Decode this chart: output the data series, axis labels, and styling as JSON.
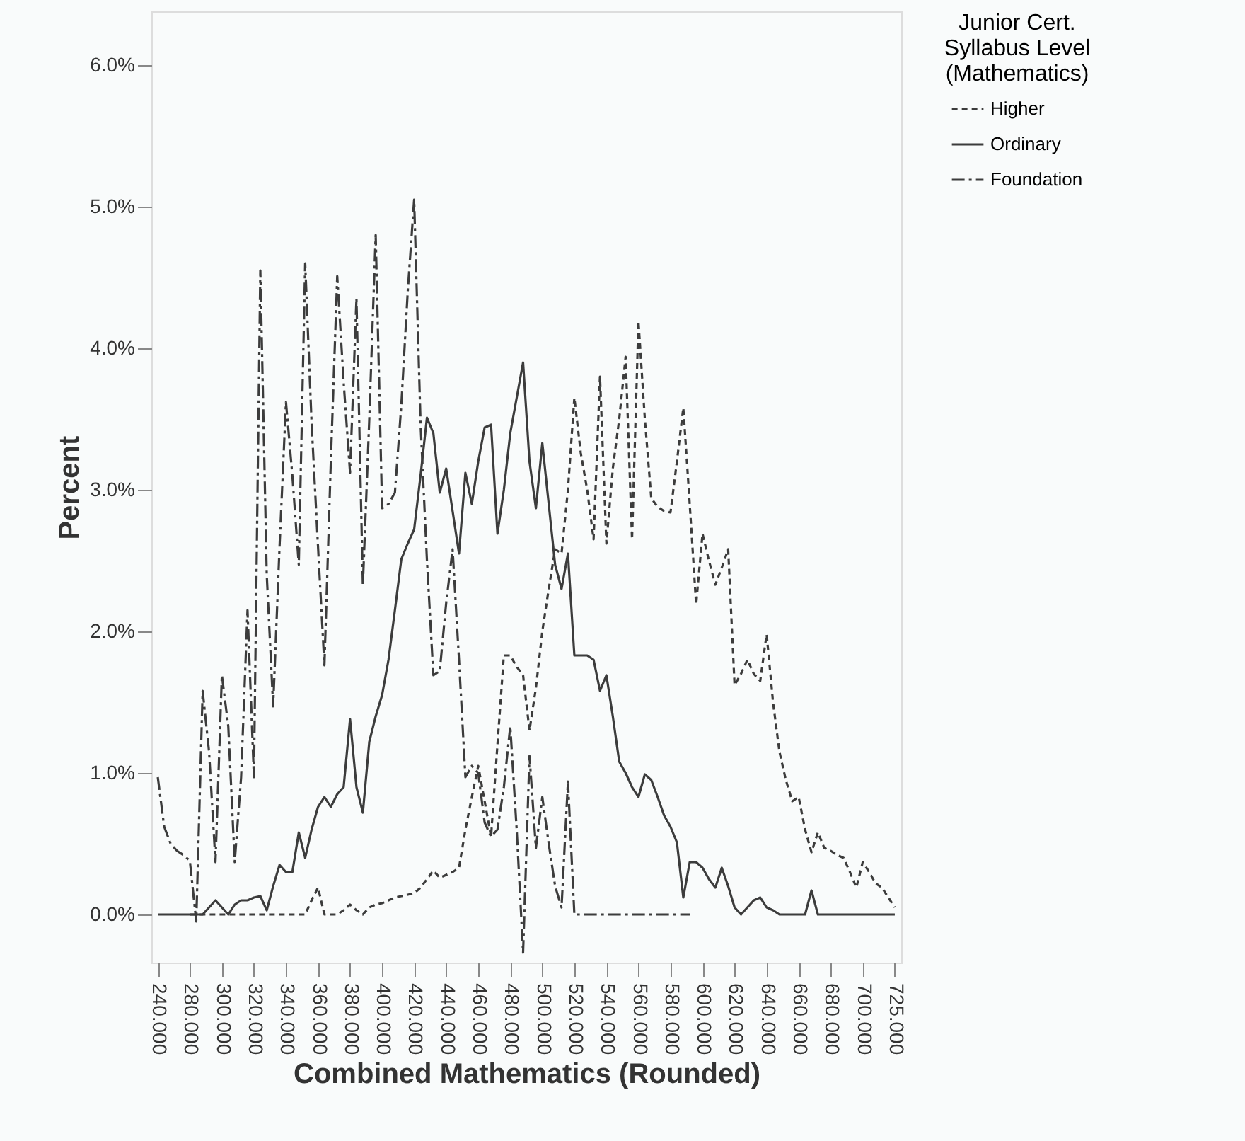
{
  "chart_data": {
    "type": "line",
    "xlabel": "Combined Mathematics (Rounded)",
    "ylabel": "Percent",
    "legend_title": "Junior Cert.\nSyllabus Level\n(Mathematics)",
    "categories": [
      "240.000",
      null,
      null,
      null,
      null,
      "280.000",
      null,
      null,
      null,
      null,
      "300.000",
      null,
      null,
      null,
      null,
      "320.000",
      null,
      null,
      null,
      null,
      "340.000",
      null,
      null,
      null,
      null,
      "360.000",
      null,
      null,
      null,
      null,
      "380.000",
      null,
      null,
      null,
      null,
      "400.000",
      null,
      null,
      null,
      null,
      "420.000",
      null,
      null,
      null,
      null,
      "440.000",
      null,
      null,
      null,
      null,
      "460.000",
      null,
      null,
      null,
      null,
      "480.000",
      null,
      null,
      null,
      null,
      "500.000",
      null,
      null,
      null,
      null,
      "520.000",
      null,
      null,
      null,
      null,
      "540.000",
      null,
      null,
      null,
      null,
      "560.000",
      null,
      null,
      null,
      null,
      "580.000",
      null,
      null,
      null,
      null,
      "600.000",
      null,
      null,
      null,
      null,
      "620.000",
      null,
      null,
      null,
      null,
      "640.000",
      null,
      null,
      null,
      null,
      "660.000",
      null,
      null,
      null,
      null,
      "680.000",
      null,
      null,
      null,
      null,
      "700.000",
      null,
      null,
      null,
      null,
      "725.000"
    ],
    "series": [
      {
        "name": "Higher",
        "color": "#3c3c3c",
        "line_style": "dashed",
        "values": [
          null,
          null,
          null,
          null,
          null,
          0,
          0,
          0,
          0,
          0,
          0,
          0,
          0,
          0,
          0,
          0,
          0,
          0,
          0,
          0,
          0,
          0,
          0,
          0,
          0.1,
          0.19,
          0,
          0,
          0,
          0.03,
          0.07,
          0.03,
          0,
          0.05,
          0.07,
          0.08,
          0.1,
          0.12,
          0.13,
          0.14,
          0.15,
          0.19,
          0.25,
          0.31,
          0.26,
          0.28,
          0.3,
          0.33,
          0.6,
          0.83,
          1.05,
          0.8,
          0.55,
          1.2,
          1.83,
          1.83,
          1.75,
          1.69,
          1.3,
          1.6,
          2.0,
          2.3,
          2.58,
          2.55,
          3.0,
          3.65,
          3.26,
          3.0,
          2.65,
          3.8,
          2.62,
          3.15,
          3.5,
          3.94,
          2.65,
          4.19,
          3.5,
          2.94,
          2.88,
          2.85,
          2.84,
          3.2,
          3.58,
          2.9,
          2.19,
          2.69,
          2.5,
          2.33,
          2.45,
          2.58,
          1.62,
          1.7,
          1.8,
          1.7,
          1.65,
          1.98,
          1.5,
          1.15,
          0.95,
          0.8,
          0.83,
          0.6,
          0.44,
          0.58,
          0.47,
          0.45,
          0.42,
          0.4,
          0.3,
          0.19,
          0.37,
          0.3,
          0.22,
          0.19,
          0.12,
          0.05
        ]
      },
      {
        "name": "Ordinary",
        "color": "#3c3c3c",
        "line_style": "solid",
        "values": [
          0,
          0,
          0,
          0,
          0,
          0,
          0,
          0,
          0.05,
          0.1,
          0.05,
          0,
          0.07,
          0.1,
          0.1,
          0.12,
          0.13,
          0.03,
          0.2,
          0.35,
          0.3,
          0.3,
          0.58,
          0.4,
          0.6,
          0.76,
          0.83,
          0.76,
          0.85,
          0.9,
          1.38,
          0.9,
          0.72,
          1.22,
          1.4,
          1.55,
          1.8,
          2.15,
          2.51,
          2.62,
          2.72,
          3.1,
          3.51,
          3.4,
          2.98,
          3.15,
          2.85,
          2.55,
          3.12,
          2.9,
          3.2,
          3.44,
          3.46,
          2.69,
          3.0,
          3.4,
          3.65,
          3.9,
          3.2,
          2.87,
          3.33,
          2.9,
          2.47,
          2.3,
          2.55,
          1.83,
          1.83,
          1.83,
          1.8,
          1.58,
          1.69,
          1.4,
          1.08,
          1.0,
          0.9,
          0.83,
          0.99,
          0.95,
          0.83,
          0.7,
          0.62,
          0.51,
          0.12,
          0.37,
          0.37,
          0.33,
          0.25,
          0.19,
          0.33,
          0.2,
          0.05,
          0,
          0.05,
          0.1,
          0.12,
          0.05,
          0.03,
          0,
          0,
          0,
          0,
          0,
          0.17,
          0,
          0,
          0,
          0,
          0,
          0,
          0,
          0,
          0,
          0,
          0,
          0,
          0
        ]
      },
      {
        "name": "Foundation",
        "color": "#3c3c3c",
        "line_style": "dashdot",
        "values": [
          0.97,
          0.62,
          0.5,
          0.45,
          0.42,
          0.38,
          -0.05,
          1.58,
          1.15,
          0.37,
          1.69,
          1.33,
          0.37,
          0.97,
          2.15,
          0.97,
          4.55,
          2.4,
          1.47,
          2.6,
          3.62,
          3.1,
          2.47,
          4.6,
          3.47,
          2.6,
          1.76,
          3.2,
          4.51,
          3.76,
          3.12,
          4.35,
          2.33,
          3.5,
          4.8,
          2.87,
          2.9,
          2.98,
          3.6,
          4.4,
          5.05,
          3.47,
          2.5,
          1.69,
          1.72,
          2.2,
          2.58,
          1.8,
          0.97,
          1.05,
          1.0,
          0.65,
          0.55,
          0.6,
          0.9,
          1.33,
          0.6,
          -0.27,
          1.12,
          0.47,
          0.83,
          0.5,
          0.2,
          0.05,
          0.94,
          0,
          0,
          0,
          0,
          0,
          0,
          0,
          0,
          0,
          0,
          0,
          0,
          0,
          0,
          0,
          0,
          0,
          0,
          0,
          null,
          null,
          null,
          null,
          null,
          null,
          null,
          null,
          null,
          null,
          null,
          null,
          null,
          null,
          null,
          null,
          null,
          null,
          null,
          null,
          null,
          null,
          null,
          null,
          null,
          null,
          null,
          null,
          null,
          null,
          null,
          null
        ]
      }
    ],
    "ylim": [
      -0.34,
      6.38
    ],
    "yticks": [
      {
        "value": 0,
        "label": "0.0%"
      },
      {
        "value": 1,
        "label": "1.0%"
      },
      {
        "value": 2,
        "label": "2.0%"
      },
      {
        "value": 3,
        "label": "3.0%"
      },
      {
        "value": 4,
        "label": "4.0%"
      },
      {
        "value": 5,
        "label": "5.0%"
      },
      {
        "value": 6,
        "label": "6.0%"
      }
    ],
    "grid": false,
    "legend": "right"
  }
}
